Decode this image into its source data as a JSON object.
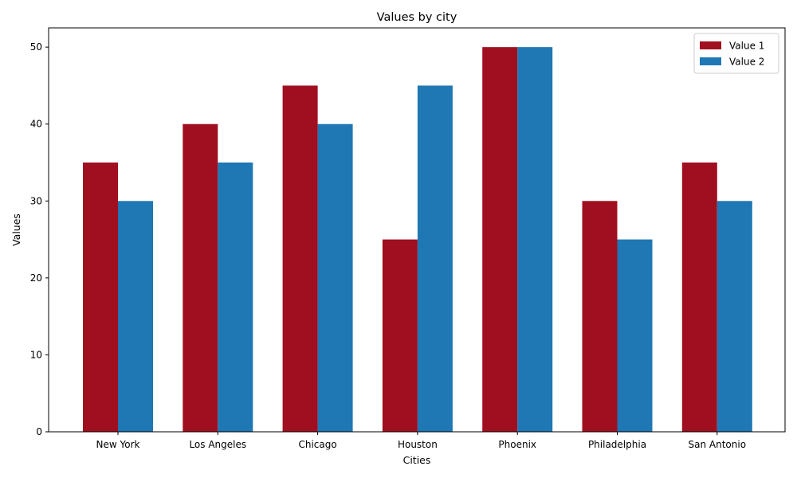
{
  "chart_data": {
    "type": "bar",
    "title": "Values by city",
    "xlabel": "Cities",
    "ylabel": "Values",
    "categories": [
      "New York",
      "Los Angeles",
      "Chicago",
      "Houston",
      "Phoenix",
      "Philadelphia",
      "San Antonio"
    ],
    "series": [
      {
        "name": "Value 1",
        "color": "#a00f1f",
        "values": [
          35,
          40,
          45,
          25,
          50,
          30,
          35
        ]
      },
      {
        "name": "Value 2",
        "color": "#1f77b4",
        "values": [
          30,
          35,
          40,
          45,
          50,
          25,
          30
        ]
      }
    ],
    "ylim": [
      0,
      52.5
    ],
    "yticks": [
      0,
      10,
      20,
      30,
      40,
      50
    ],
    "grid": false,
    "legend_position": "top-right"
  }
}
